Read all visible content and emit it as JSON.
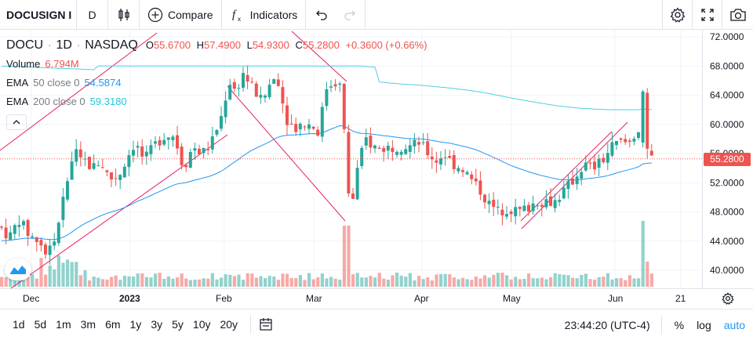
{
  "toolbar": {
    "symbol": "DOCUSIGN I",
    "interval": "D",
    "compare_label": "Compare",
    "indicators_label": "Indicators"
  },
  "legend": {
    "symbol": "DOCU",
    "interval": "1D",
    "exchange": "NASDAQ",
    "o_label": "O",
    "o_value": "55.6700",
    "h_label": "H",
    "h_value": "57.4900",
    "l_label": "L",
    "l_value": "54.9300",
    "c_label": "C",
    "c_value": "55.2800",
    "change": "+0.3600 (+0.66%)",
    "volume_label": "Volume",
    "volume_value": "6.794M",
    "ema50_label": "EMA",
    "ema50_params": "50 close 0",
    "ema50_value": "54.5874",
    "ema200_label": "EMA",
    "ema200_params": "200 close 0",
    "ema200_value": "59.3180"
  },
  "colors": {
    "up": "#26a69a",
    "down": "#ef5350",
    "ema50": "#2196f3",
    "ema200": "#4dd0e1",
    "trendline": "#e91e63",
    "last_price": "#ef5350"
  },
  "price_axis": {
    "ticks": [
      "72.0000",
      "68.0000",
      "64.0000",
      "60.0000",
      "56.0000",
      "52.0000",
      "48.0000",
      "44.0000",
      "40.0000"
    ],
    "last_price": "55.2800"
  },
  "time_axis": {
    "ticks": [
      "Dec",
      "2023",
      "Feb",
      "Mar",
      "Apr",
      "May",
      "Jun",
      "21"
    ]
  },
  "bottom": {
    "ranges": [
      "1d",
      "5d",
      "1m",
      "3m",
      "6m",
      "1y",
      "3y",
      "5y",
      "10y",
      "20y"
    ],
    "time": "23:44:20 (UTC-4)",
    "percent": "%",
    "log": "log",
    "auto": "auto"
  }
}
